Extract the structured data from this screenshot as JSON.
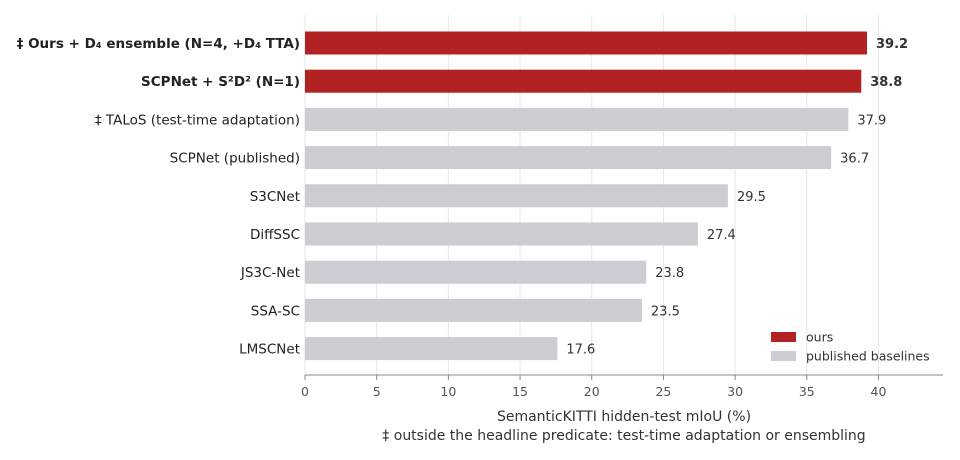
{
  "chart_data": {
    "type": "bar",
    "orientation": "horizontal",
    "categories": [
      "‡ Ours + D₄ ensemble  (N=4, +D₄ TTA)",
      "SCPNet + S²D² (N=1)",
      "‡ TALoS  (test-time adaptation)",
      "SCPNet (published)",
      "S3CNet",
      "DiffSSC",
      "JS3C-Net",
      "SSA-SC",
      "LMSCNet"
    ],
    "values": [
      39.2,
      38.8,
      37.9,
      36.7,
      29.5,
      27.4,
      23.8,
      23.5,
      17.6
    ],
    "value_labels": [
      "39.2",
      "38.8",
      "37.9",
      "36.7",
      "29.5",
      "27.4",
      "23.8",
      "23.5",
      "17.6"
    ],
    "groups": [
      "ours",
      "ours",
      "published baselines",
      "published baselines",
      "published baselines",
      "published baselines",
      "published baselines",
      "published baselines",
      "published baselines"
    ],
    "xlabel": "SemanticKITTI hidden-test mIoU (%)",
    "footnote": "‡ outside the headline predicate: test-time adaptation or ensembling",
    "xlim": [
      0,
      44.5
    ],
    "xticks": [
      0,
      5,
      10,
      15,
      20,
      25,
      30,
      35,
      40
    ],
    "grid": "vertical",
    "legend": {
      "placement": "bottom-right",
      "entries": [
        {
          "label": "ours",
          "color": "#b22222"
        },
        {
          "label": "published baselines",
          "color": "#cbcdd2"
        }
      ]
    },
    "colors": {
      "ours": "#b22222",
      "published baselines": "#cbcdd2"
    }
  }
}
